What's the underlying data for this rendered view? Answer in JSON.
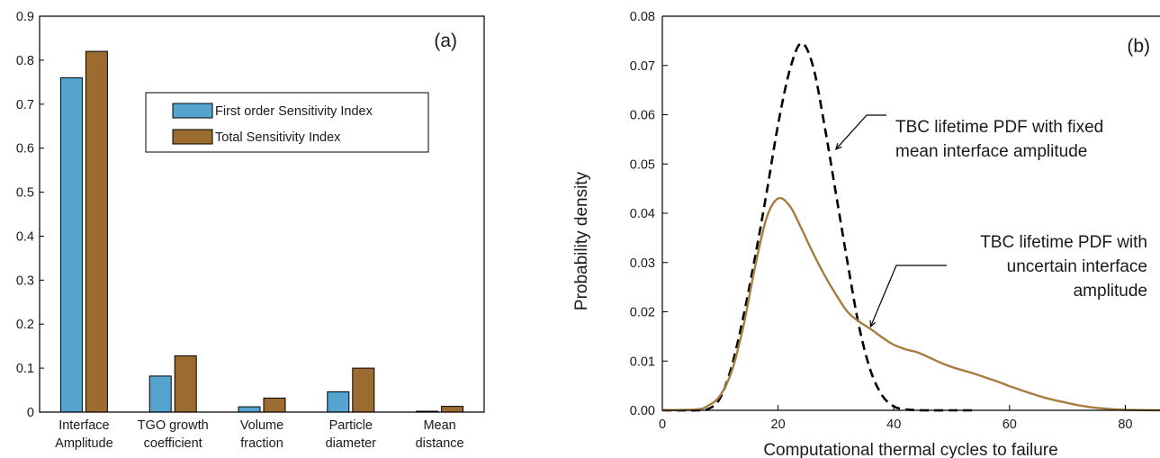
{
  "chart_data": [
    {
      "type": "bar",
      "panel_label": "(a)",
      "categories": [
        [
          "Interface",
          "Amplitude"
        ],
        [
          "TGO growth",
          "coefficient"
        ],
        [
          "Volume",
          "fraction"
        ],
        [
          "Particle",
          "diameter"
        ],
        [
          "Mean",
          "distance"
        ]
      ],
      "series": [
        {
          "name": "First order Sensitivity Index",
          "color": "#55a4cf",
          "values": [
            0.76,
            0.082,
            0.012,
            0.046,
            0.002
          ]
        },
        {
          "name": "Total Sensitivity Index",
          "color": "#9c6b30",
          "values": [
            0.82,
            0.128,
            0.032,
            0.1,
            0.013
          ]
        }
      ],
      "ylim": [
        0,
        0.9
      ],
      "yticks": [
        "0",
        "0.1",
        "0.2",
        "0.3",
        "0.4",
        "0.5",
        "0.6",
        "0.7",
        "0.8",
        "0.9"
      ],
      "legend_position": "upper-right",
      "grid": false
    },
    {
      "type": "line",
      "panel_label": "(b)",
      "xlabel": "Computational thermal cycles to failure",
      "ylabel": "Probability density",
      "xlim": [
        0,
        86
      ],
      "ylim": [
        0,
        0.08
      ],
      "xticks": [
        "0",
        "20",
        "40",
        "60",
        "80"
      ],
      "yticks": [
        "0.00",
        "0.01",
        "0.02",
        "0.03",
        "0.04",
        "0.05",
        "0.06",
        "0.07",
        "0.08"
      ],
      "grid": false,
      "series": [
        {
          "style": "dashed",
          "color": "#000000",
          "x": [
            0,
            6,
            8,
            10,
            12,
            14,
            16,
            18,
            20,
            22,
            24,
            26,
            28,
            30,
            32,
            34,
            36,
            38,
            40,
            42,
            45,
            50,
            54
          ],
          "y": [
            0,
            0,
            0.0003,
            0.0025,
            0.009,
            0.019,
            0.031,
            0.044,
            0.058,
            0.069,
            0.0745,
            0.07,
            0.058,
            0.044,
            0.03,
            0.017,
            0.008,
            0.003,
            0.0008,
            0.0002,
            0,
            0,
            0
          ]
        },
        {
          "style": "solid",
          "color": "#a87b3e",
          "x": [
            0,
            6,
            8,
            10,
            12,
            14,
            16,
            18,
            20,
            22,
            24,
            26,
            28,
            30,
            32,
            34,
            36,
            38,
            40,
            42,
            44,
            46,
            48,
            50,
            52,
            54,
            56,
            58,
            60,
            62,
            64,
            66,
            68,
            70,
            72,
            75,
            80,
            86
          ],
          "y": [
            0,
            0.0002,
            0.001,
            0.003,
            0.008,
            0.017,
            0.029,
            0.039,
            0.043,
            0.0415,
            0.037,
            0.032,
            0.0275,
            0.0235,
            0.02,
            0.018,
            0.0165,
            0.0148,
            0.0133,
            0.0124,
            0.0118,
            0.0108,
            0.0097,
            0.0088,
            0.0081,
            0.0074,
            0.0066,
            0.0058,
            0.0049,
            0.0041,
            0.0033,
            0.0026,
            0.002,
            0.0015,
            0.001,
            0.0005,
            0.0001,
            0
          ]
        }
      ],
      "annotations": [
        {
          "lines": [
            "TBC lifetime PDF with fixed",
            "mean interface amplitude"
          ],
          "target": [
            30,
            0.053
          ]
        },
        {
          "lines": [
            "TBC lifetime PDF with",
            "uncertain interface",
            "amplitude"
          ],
          "target": [
            36,
            0.017
          ]
        }
      ]
    }
  ]
}
